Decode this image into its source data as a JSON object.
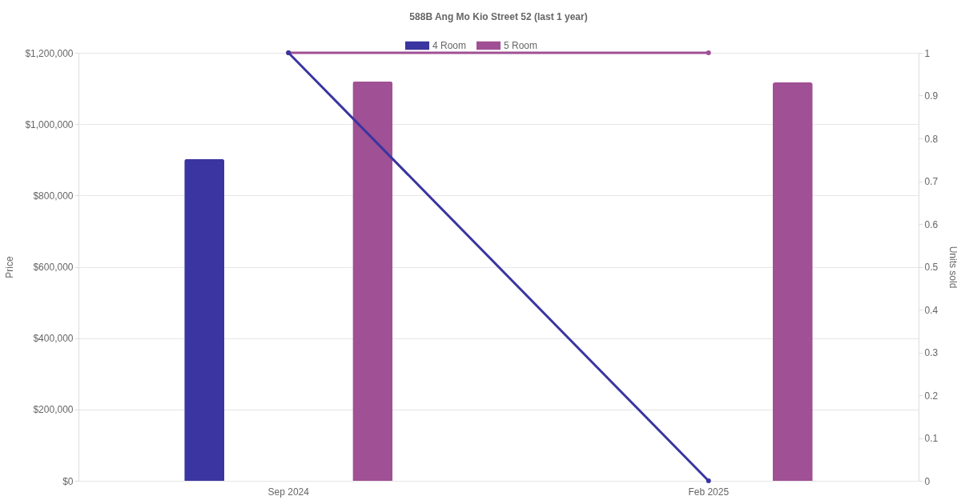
{
  "chart_data": {
    "type": "bar",
    "title": "588B Ang Mo Kio Street 52 (last 1 year)",
    "ylabel": "Price",
    "y2label": "Units sold",
    "categories": [
      "Sep 2024",
      "Feb 2025"
    ],
    "series": [
      {
        "name": "4 Room",
        "color": "#3a35a0",
        "values": [
          902000,
          null
        ]
      },
      {
        "name": "5 Room",
        "color": "#a05094",
        "values": [
          1120000,
          1117000
        ]
      },
      {
        "type": "line",
        "axis": "y2",
        "color": "#3a35a0",
        "values": [
          1,
          0
        ]
      },
      {
        "type": "line",
        "axis": "y2",
        "color": "#a05094",
        "values": [
          1,
          1
        ]
      }
    ],
    "ylim": [
      0,
      1200000
    ],
    "yticks": [
      {
        "value": 0,
        "label": "$0"
      },
      {
        "value": 200000,
        "label": "$200,000"
      },
      {
        "value": 400000,
        "label": "$400,000"
      },
      {
        "value": 600000,
        "label": "$600,000"
      },
      {
        "value": 800000,
        "label": "$800,000"
      },
      {
        "value": 1000000,
        "label": "$1,000,000"
      },
      {
        "value": 1200000,
        "label": "$1,200,000"
      }
    ],
    "y2lim": [
      0,
      1
    ],
    "y2ticks": [
      0,
      0.1,
      0.2,
      0.3,
      0.4,
      0.5,
      0.6,
      0.7,
      0.8,
      0.9,
      1
    ],
    "grid": "y",
    "legend": "top",
    "marker": "circle"
  }
}
